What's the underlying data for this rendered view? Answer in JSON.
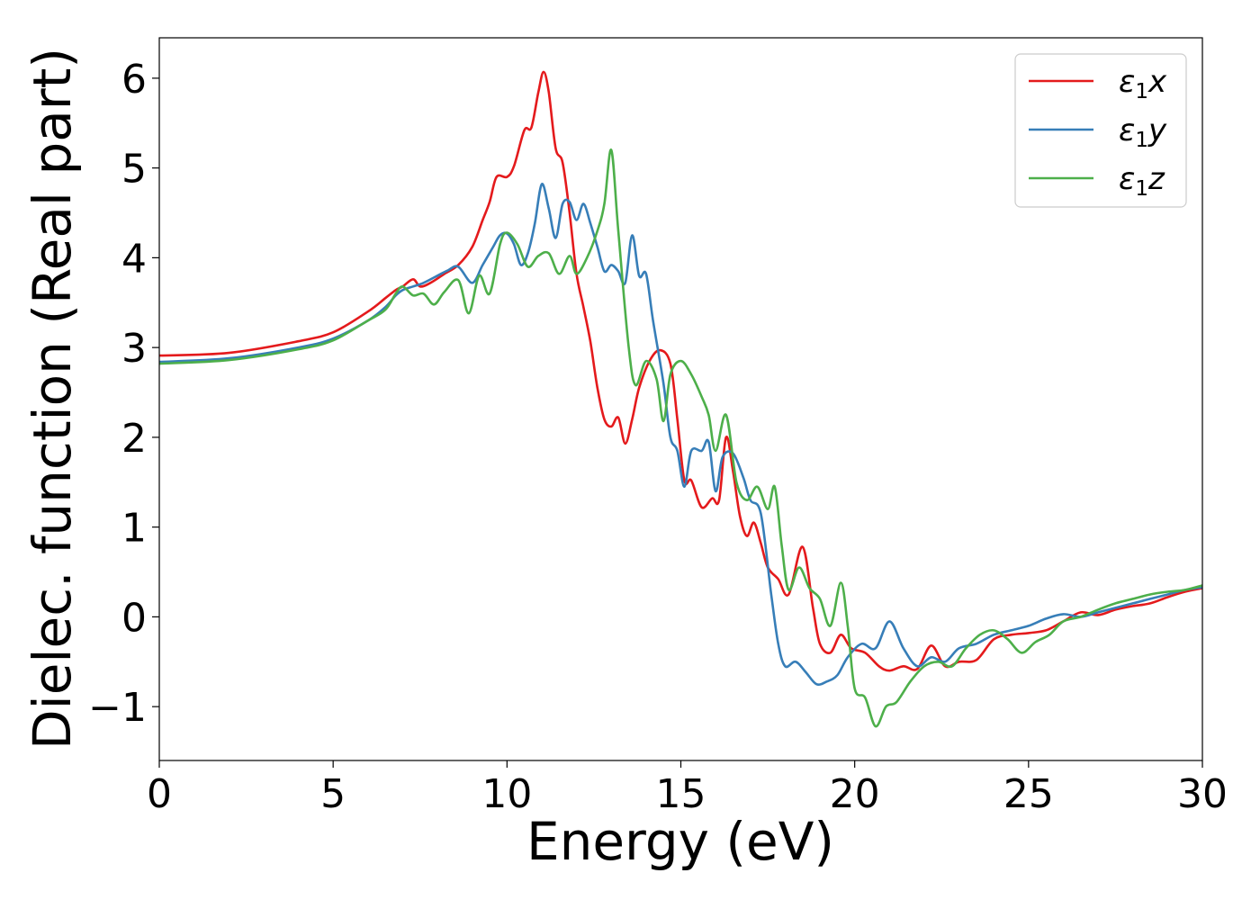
{
  "chart_data": {
    "type": "line",
    "xlabel": "Energy (eV)",
    "ylabel": "Dielec. function (Real part)",
    "xlim": [
      0,
      30
    ],
    "ylim": [
      -1.6,
      6.45
    ],
    "xticks": [
      0,
      5,
      10,
      15,
      20,
      25,
      30
    ],
    "yticks": [
      -1,
      0,
      1,
      2,
      3,
      4,
      5,
      6
    ],
    "xtick_labels": [
      "0",
      "5",
      "10",
      "15",
      "20",
      "25",
      "30"
    ],
    "ytick_labels": [
      "−1",
      "0",
      "1",
      "2",
      "3",
      "4",
      "5",
      "6"
    ],
    "grid": false,
    "legend_position": "top-right",
    "series": [
      {
        "name": "ε1x",
        "legend": {
          "symbol": "ε",
          "sub": "1",
          "axis": "x"
        },
        "color": "#e41a1c",
        "points": [
          [
            0,
            2.91
          ],
          [
            2,
            2.94
          ],
          [
            4,
            3.07
          ],
          [
            5,
            3.17
          ],
          [
            6,
            3.4
          ],
          [
            6.5,
            3.55
          ],
          [
            6.8,
            3.64
          ],
          [
            7,
            3.68
          ],
          [
            7.3,
            3.76
          ],
          [
            7.5,
            3.68
          ],
          [
            7.8,
            3.72
          ],
          [
            8.2,
            3.82
          ],
          [
            8.6,
            3.92
          ],
          [
            9,
            4.12
          ],
          [
            9.3,
            4.42
          ],
          [
            9.5,
            4.62
          ],
          [
            9.7,
            4.9
          ],
          [
            10,
            4.9
          ],
          [
            10.2,
            5.02
          ],
          [
            10.5,
            5.42
          ],
          [
            10.7,
            5.45
          ],
          [
            10.9,
            5.84
          ],
          [
            11.05,
            6.07
          ],
          [
            11.2,
            5.85
          ],
          [
            11.4,
            5.22
          ],
          [
            11.6,
            5.06
          ],
          [
            11.8,
            4.5
          ],
          [
            12,
            3.82
          ],
          [
            12.2,
            3.45
          ],
          [
            12.4,
            3.06
          ],
          [
            12.6,
            2.55
          ],
          [
            12.8,
            2.2
          ],
          [
            13,
            2.12
          ],
          [
            13.2,
            2.22
          ],
          [
            13.4,
            1.93
          ],
          [
            13.6,
            2.2
          ],
          [
            13.8,
            2.55
          ],
          [
            14.1,
            2.85
          ],
          [
            14.4,
            2.97
          ],
          [
            14.7,
            2.82
          ],
          [
            14.9,
            2.2
          ],
          [
            15.1,
            1.52
          ],
          [
            15.3,
            1.52
          ],
          [
            15.6,
            1.22
          ],
          [
            15.9,
            1.32
          ],
          [
            16.1,
            1.3
          ],
          [
            16.3,
            2.0
          ],
          [
            16.5,
            1.62
          ],
          [
            16.7,
            1.12
          ],
          [
            16.9,
            0.9
          ],
          [
            17.1,
            1.05
          ],
          [
            17.3,
            0.82
          ],
          [
            17.5,
            0.55
          ],
          [
            17.8,
            0.42
          ],
          [
            18.1,
            0.25
          ],
          [
            18.5,
            0.78
          ],
          [
            18.8,
            0.1
          ],
          [
            19.0,
            -0.3
          ],
          [
            19.3,
            -0.4
          ],
          [
            19.6,
            -0.2
          ],
          [
            19.9,
            -0.35
          ],
          [
            20.3,
            -0.4
          ],
          [
            20.7,
            -0.55
          ],
          [
            21.0,
            -0.6
          ],
          [
            21.4,
            -0.55
          ],
          [
            21.8,
            -0.58
          ],
          [
            22.2,
            -0.32
          ],
          [
            22.6,
            -0.55
          ],
          [
            23.0,
            -0.5
          ],
          [
            23.5,
            -0.48
          ],
          [
            24.0,
            -0.25
          ],
          [
            24.5,
            -0.2
          ],
          [
            25.0,
            -0.18
          ],
          [
            25.5,
            -0.15
          ],
          [
            26.0,
            -0.05
          ],
          [
            26.5,
            0.05
          ],
          [
            27.0,
            0.02
          ],
          [
            27.5,
            0.08
          ],
          [
            28.0,
            0.12
          ],
          [
            28.5,
            0.15
          ],
          [
            29.0,
            0.22
          ],
          [
            29.5,
            0.28
          ],
          [
            30,
            0.32
          ]
        ]
      },
      {
        "name": "ε1y",
        "legend": {
          "symbol": "ε",
          "sub": "1",
          "axis": "y"
        },
        "color": "#377eb8",
        "points": [
          [
            0,
            2.84
          ],
          [
            2,
            2.88
          ],
          [
            4,
            3.0
          ],
          [
            5,
            3.1
          ],
          [
            6,
            3.3
          ],
          [
            6.5,
            3.45
          ],
          [
            6.8,
            3.58
          ],
          [
            7,
            3.64
          ],
          [
            7.3,
            3.68
          ],
          [
            7.6,
            3.72
          ],
          [
            8.0,
            3.8
          ],
          [
            8.3,
            3.86
          ],
          [
            8.6,
            3.9
          ],
          [
            9.0,
            3.72
          ],
          [
            9.3,
            3.92
          ],
          [
            9.6,
            4.12
          ],
          [
            9.8,
            4.25
          ],
          [
            10.0,
            4.27
          ],
          [
            10.2,
            4.15
          ],
          [
            10.4,
            3.92
          ],
          [
            10.6,
            4.05
          ],
          [
            10.8,
            4.38
          ],
          [
            11.0,
            4.82
          ],
          [
            11.2,
            4.55
          ],
          [
            11.4,
            4.22
          ],
          [
            11.6,
            4.6
          ],
          [
            11.8,
            4.62
          ],
          [
            12.0,
            4.42
          ],
          [
            12.2,
            4.6
          ],
          [
            12.4,
            4.38
          ],
          [
            12.6,
            4.12
          ],
          [
            12.8,
            3.85
          ],
          [
            13.0,
            3.92
          ],
          [
            13.2,
            3.85
          ],
          [
            13.4,
            3.72
          ],
          [
            13.6,
            4.25
          ],
          [
            13.8,
            3.8
          ],
          [
            14.0,
            3.82
          ],
          [
            14.2,
            3.3
          ],
          [
            14.5,
            2.6
          ],
          [
            14.7,
            2.0
          ],
          [
            14.9,
            1.85
          ],
          [
            15.1,
            1.45
          ],
          [
            15.3,
            1.85
          ],
          [
            15.6,
            1.85
          ],
          [
            15.8,
            1.95
          ],
          [
            16.0,
            1.4
          ],
          [
            16.2,
            1.78
          ],
          [
            16.5,
            1.82
          ],
          [
            16.8,
            1.55
          ],
          [
            17.0,
            1.3
          ],
          [
            17.3,
            1.15
          ],
          [
            17.6,
            0.25
          ],
          [
            17.8,
            -0.3
          ],
          [
            18.0,
            -0.55
          ],
          [
            18.3,
            -0.5
          ],
          [
            18.6,
            -0.62
          ],
          [
            18.9,
            -0.75
          ],
          [
            19.2,
            -0.72
          ],
          [
            19.5,
            -0.65
          ],
          [
            19.8,
            -0.45
          ],
          [
            20.2,
            -0.3
          ],
          [
            20.6,
            -0.35
          ],
          [
            21.0,
            -0.05
          ],
          [
            21.4,
            -0.35
          ],
          [
            21.8,
            -0.55
          ],
          [
            22.2,
            -0.45
          ],
          [
            22.6,
            -0.5
          ],
          [
            23.0,
            -0.35
          ],
          [
            23.5,
            -0.3
          ],
          [
            24.0,
            -0.2
          ],
          [
            24.5,
            -0.15
          ],
          [
            25.0,
            -0.1
          ],
          [
            25.5,
            -0.02
          ],
          [
            26.0,
            0.03
          ],
          [
            26.5,
            0.0
          ],
          [
            27.0,
            0.05
          ],
          [
            27.5,
            0.1
          ],
          [
            28.0,
            0.15
          ],
          [
            28.5,
            0.2
          ],
          [
            29.0,
            0.25
          ],
          [
            29.5,
            0.3
          ],
          [
            30,
            0.33
          ]
        ]
      },
      {
        "name": "ε1z",
        "legend": {
          "symbol": "ε",
          "sub": "1",
          "axis": "z"
        },
        "color": "#4daf4a",
        "points": [
          [
            0,
            2.82
          ],
          [
            2,
            2.86
          ],
          [
            4,
            2.98
          ],
          [
            5,
            3.08
          ],
          [
            6,
            3.3
          ],
          [
            6.5,
            3.42
          ],
          [
            6.8,
            3.6
          ],
          [
            7,
            3.68
          ],
          [
            7.3,
            3.58
          ],
          [
            7.6,
            3.6
          ],
          [
            7.9,
            3.48
          ],
          [
            8.2,
            3.62
          ],
          [
            8.6,
            3.75
          ],
          [
            8.9,
            3.38
          ],
          [
            9.2,
            3.8
          ],
          [
            9.5,
            3.6
          ],
          [
            9.8,
            4.15
          ],
          [
            10.0,
            4.28
          ],
          [
            10.3,
            4.15
          ],
          [
            10.6,
            3.9
          ],
          [
            10.9,
            4.02
          ],
          [
            11.2,
            4.05
          ],
          [
            11.5,
            3.82
          ],
          [
            11.8,
            4.02
          ],
          [
            12.0,
            3.82
          ],
          [
            12.3,
            4.0
          ],
          [
            12.6,
            4.3
          ],
          [
            12.8,
            4.6
          ],
          [
            13.0,
            5.2
          ],
          [
            13.2,
            4.3
          ],
          [
            13.5,
            3.0
          ],
          [
            13.7,
            2.58
          ],
          [
            14.0,
            2.85
          ],
          [
            14.3,
            2.65
          ],
          [
            14.5,
            2.18
          ],
          [
            14.7,
            2.7
          ],
          [
            15.0,
            2.85
          ],
          [
            15.3,
            2.7
          ],
          [
            15.6,
            2.45
          ],
          [
            15.8,
            2.25
          ],
          [
            16.0,
            1.85
          ],
          [
            16.3,
            2.25
          ],
          [
            16.6,
            1.5
          ],
          [
            16.9,
            1.3
          ],
          [
            17.2,
            1.45
          ],
          [
            17.5,
            1.2
          ],
          [
            17.7,
            1.45
          ],
          [
            17.9,
            0.8
          ],
          [
            18.1,
            0.3
          ],
          [
            18.4,
            0.55
          ],
          [
            18.7,
            0.32
          ],
          [
            19.0,
            0.2
          ],
          [
            19.3,
            -0.1
          ],
          [
            19.6,
            0.38
          ],
          [
            19.8,
            -0.1
          ],
          [
            20.0,
            -0.8
          ],
          [
            20.3,
            -0.9
          ],
          [
            20.6,
            -1.22
          ],
          [
            20.9,
            -1.0
          ],
          [
            21.2,
            -0.95
          ],
          [
            21.6,
            -0.72
          ],
          [
            22.0,
            -0.55
          ],
          [
            22.4,
            -0.5
          ],
          [
            22.8,
            -0.55
          ],
          [
            23.2,
            -0.35
          ],
          [
            23.6,
            -0.2
          ],
          [
            24.0,
            -0.15
          ],
          [
            24.4,
            -0.25
          ],
          [
            24.8,
            -0.4
          ],
          [
            25.2,
            -0.28
          ],
          [
            25.6,
            -0.2
          ],
          [
            26.0,
            -0.05
          ],
          [
            26.5,
            0.0
          ],
          [
            27.0,
            0.08
          ],
          [
            27.5,
            0.15
          ],
          [
            28.0,
            0.2
          ],
          [
            28.5,
            0.25
          ],
          [
            29.0,
            0.28
          ],
          [
            29.5,
            0.3
          ],
          [
            30,
            0.35
          ]
        ]
      }
    ]
  }
}
